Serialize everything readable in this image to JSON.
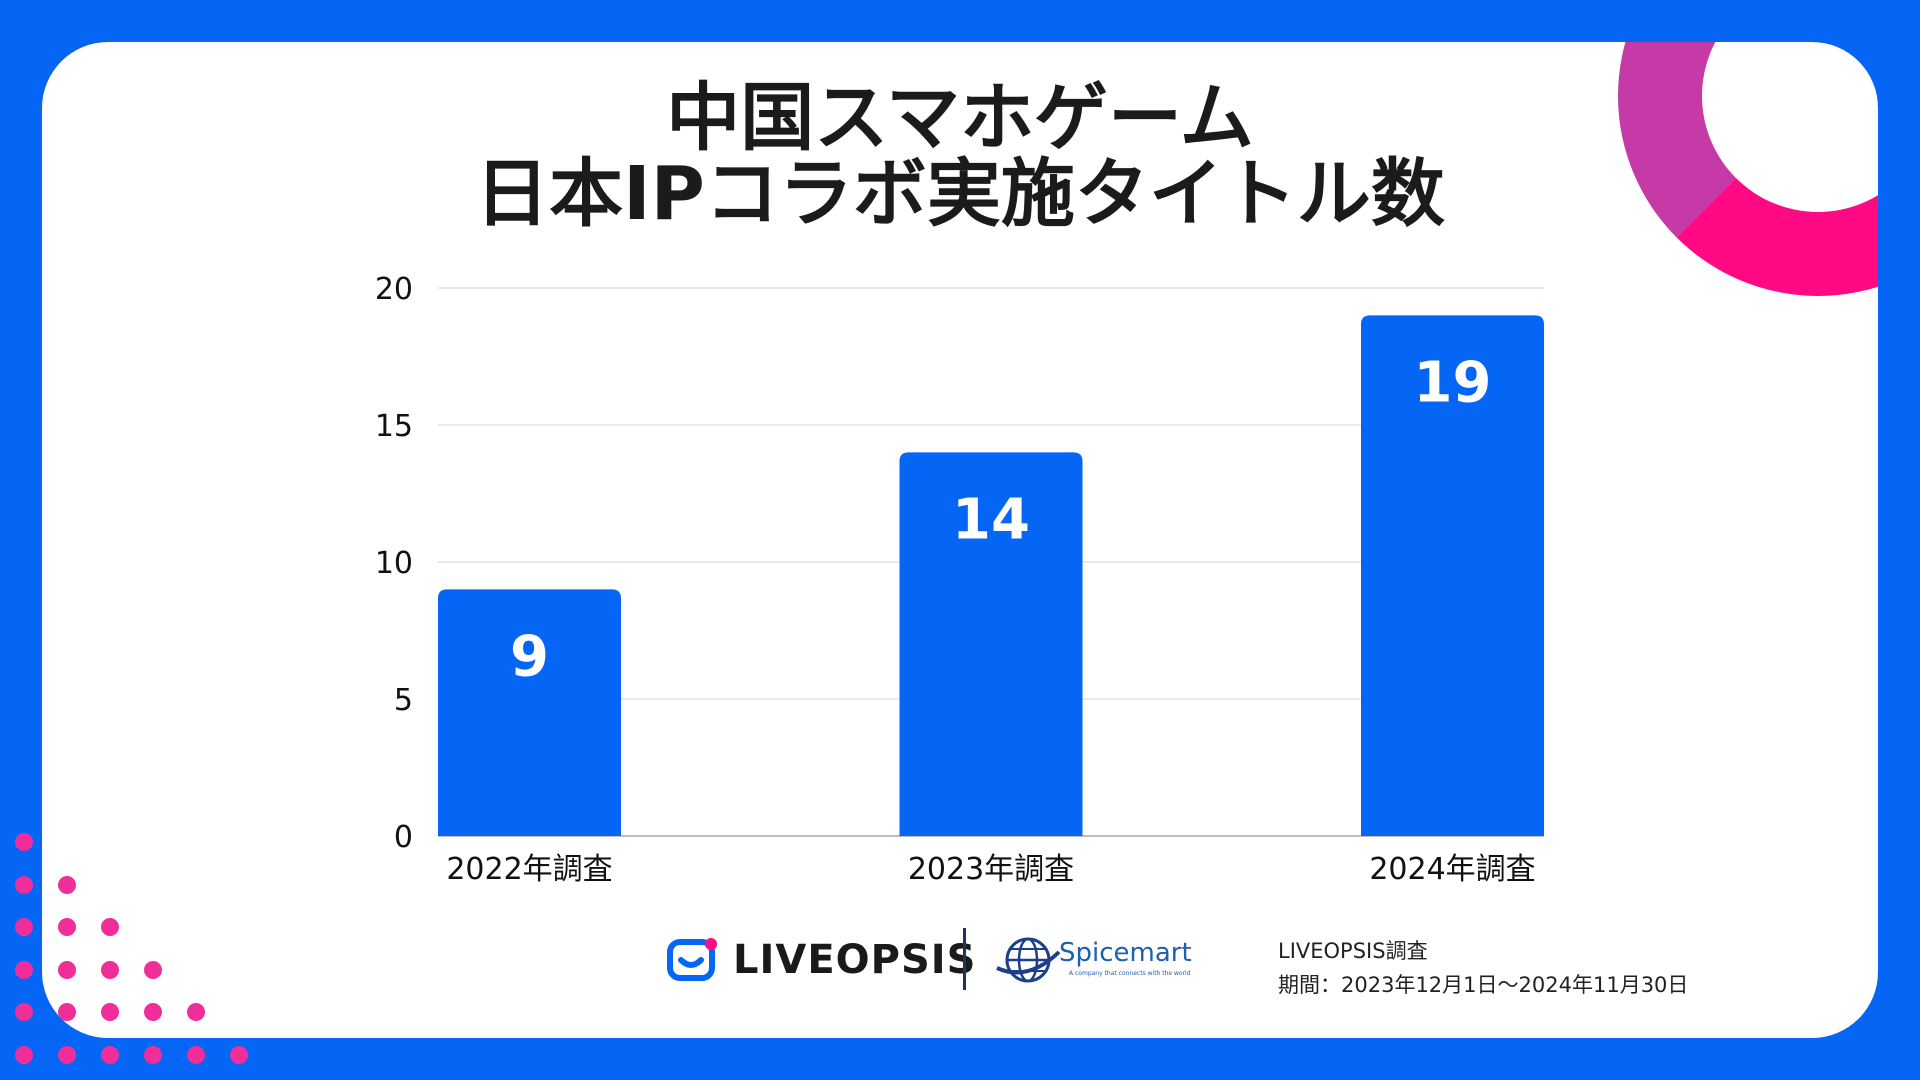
{
  "title_lines": [
    "中国スマホゲーム",
    "日本IPコラボ実施タイトル数"
  ],
  "colors": {
    "background": "#0565f5",
    "bar": "#0565f5",
    "accent_pink": "#ff0a84",
    "dots": "#f02e9a"
  },
  "chart_data": {
    "type": "bar",
    "title": "中国スマホゲーム 日本IPコラボ実施タイトル数",
    "categories": [
      "2022年調査",
      "2023年調査",
      "2024年調査"
    ],
    "values": [
      9,
      14,
      19
    ],
    "data_labels": [
      "9",
      "14",
      "19"
    ],
    "yticks": [
      "0",
      "5",
      "10",
      "15",
      "20"
    ],
    "ylim": [
      0,
      20
    ],
    "grid": true,
    "xlabel": "",
    "ylabel": ""
  },
  "footer": {
    "logo_liveopsis": "LIVEOPSIS",
    "logo_spicemart": "Spicemart",
    "spicemart_tagline": "A company that connects with the world",
    "source_line1": "LIVEOPSIS調査",
    "source_line2": "期間：2023年12月1日～2024年11月30日"
  },
  "icons": [
    "liveopsis-logo-icon",
    "globe-icon"
  ]
}
